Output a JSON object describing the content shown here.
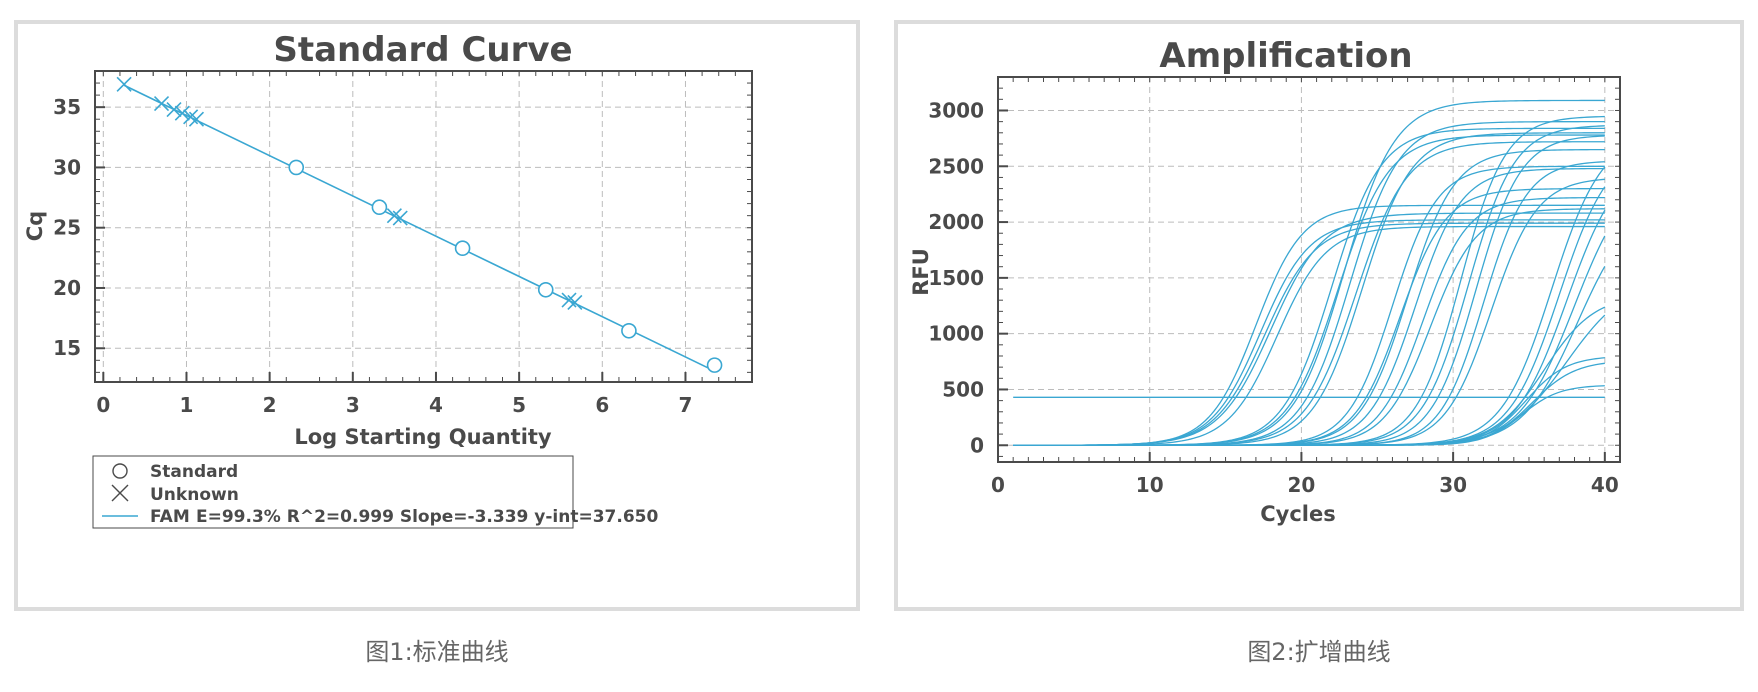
{
  "captions": {
    "left": "图1:标准曲线",
    "right": "图2:扩增曲线"
  },
  "colors": {
    "series": "#3aa7d2",
    "frame": "#4a4a4a",
    "grid": "#bcbcbc",
    "panel_border": "#dcdcdc"
  },
  "chart_data": [
    {
      "type": "scatter",
      "title": "Standard Curve",
      "xlabel": "Log Starting Quantity",
      "ylabel": "Cq",
      "xlim": [
        -0.1,
        7.8
      ],
      "ylim": [
        12.2,
        38.0
      ],
      "xticks": [
        0,
        1,
        2,
        3,
        4,
        5,
        6,
        7
      ],
      "yticks": [
        15,
        20,
        25,
        30,
        35
      ],
      "grid": true,
      "legend_position": "bottom",
      "legend": {
        "standard_label": "Standard",
        "unknown_label": "Unknown",
        "fit_name": "FAM",
        "fit_stats": "E=99.3% R^2=0.999  Slope=-3.339  y-int=37.650"
      },
      "fit": {
        "slope": -3.339,
        "intercept": 37.65,
        "x_range": [
          0.25,
          7.35
        ]
      },
      "standards": [
        {
          "x": 2.32,
          "y": 30.0
        },
        {
          "x": 3.32,
          "y": 26.7
        },
        {
          "x": 4.32,
          "y": 23.3
        },
        {
          "x": 5.32,
          "y": 19.85
        },
        {
          "x": 6.32,
          "y": 16.45
        },
        {
          "x": 7.35,
          "y": 13.6
        }
      ],
      "unknowns": [
        {
          "x": 0.25,
          "y": 36.9
        },
        {
          "x": 0.7,
          "y": 35.3
        },
        {
          "x": 0.85,
          "y": 34.8
        },
        {
          "x": 0.95,
          "y": 34.5
        },
        {
          "x": 1.05,
          "y": 34.2
        },
        {
          "x": 1.12,
          "y": 34.0
        },
        {
          "x": 3.5,
          "y": 26.0
        },
        {
          "x": 3.57,
          "y": 25.8
        },
        {
          "x": 5.6,
          "y": 19.0
        },
        {
          "x": 5.67,
          "y": 18.8
        }
      ]
    },
    {
      "type": "line",
      "title": "Amplification",
      "xlabel": "Cycles",
      "ylabel": "RFU",
      "xlim": [
        0,
        41
      ],
      "ylim": [
        -150,
        3300
      ],
      "xticks": [
        0,
        10,
        20,
        30,
        40
      ],
      "yticks": [
        0,
        500,
        1000,
        1500,
        2000,
        2500,
        3000
      ],
      "grid": true,
      "threshold": 430,
      "x_range": [
        1,
        40
      ],
      "curve_model": "sigmoid",
      "curves": [
        {
          "plateau": 2150,
          "midpoint": 17.0,
          "steepness": 0.65
        },
        {
          "plateau": 2020,
          "midpoint": 17.3,
          "steepness": 0.62
        },
        {
          "plateau": 1990,
          "midpoint": 17.6,
          "steepness": 0.6
        },
        {
          "plateau": 2080,
          "midpoint": 18.0,
          "steepness": 0.58
        },
        {
          "plateau": 1960,
          "midpoint": 18.4,
          "steepness": 0.62
        },
        {
          "plateau": 2840,
          "midpoint": 22.0,
          "steepness": 0.62
        },
        {
          "plateau": 2780,
          "midpoint": 22.4,
          "steepness": 0.6
        },
        {
          "plateau": 3090,
          "midpoint": 22.8,
          "steepness": 0.6
        },
        {
          "plateau": 2900,
          "midpoint": 23.2,
          "steepness": 0.62
        },
        {
          "plateau": 2720,
          "midpoint": 23.6,
          "steepness": 0.6
        },
        {
          "plateau": 2800,
          "midpoint": 24.0,
          "steepness": 0.62
        },
        {
          "plateau": 2500,
          "midpoint": 26.0,
          "steepness": 0.68
        },
        {
          "plateau": 2300,
          "midpoint": 26.5,
          "steepness": 0.66
        },
        {
          "plateau": 2650,
          "midpoint": 27.0,
          "steepness": 0.65
        },
        {
          "plateau": 2480,
          "midpoint": 27.5,
          "steepness": 0.66
        },
        {
          "plateau": 2220,
          "midpoint": 28.0,
          "steepness": 0.68
        },
        {
          "plateau": 2120,
          "midpoint": 28.5,
          "steepness": 0.66
        },
        {
          "plateau": 2950,
          "midpoint": 30.5,
          "steepness": 0.68
        },
        {
          "plateau": 2870,
          "midpoint": 31.0,
          "steepness": 0.66
        },
        {
          "plateau": 2780,
          "midpoint": 31.5,
          "steepness": 0.68
        },
        {
          "plateau": 2550,
          "midpoint": 32.0,
          "steepness": 0.7
        },
        {
          "plateau": 2400,
          "midpoint": 32.5,
          "steepness": 0.66
        },
        {
          "plateau": 2800,
          "midpoint": 36.5,
          "steepness": 0.6
        },
        {
          "plateau": 2700,
          "midpoint": 37.0,
          "steepness": 0.6
        },
        {
          "plateau": 2600,
          "midpoint": 37.5,
          "steepness": 0.58
        },
        {
          "plateau": 2500,
          "midpoint": 38.0,
          "steepness": 0.55
        },
        {
          "plateau": 2200,
          "midpoint": 38.2,
          "steepness": 0.55
        },
        {
          "plateau": 1500,
          "midpoint": 37.5,
          "steepness": 0.5
        },
        {
          "plateau": 1350,
          "midpoint": 36.0,
          "steepness": 0.6
        },
        {
          "plateau": 800,
          "midpoint": 34.8,
          "steepness": 0.75
        },
        {
          "plateau": 760,
          "midpoint": 35.2,
          "steepness": 0.7
        },
        {
          "plateau": 540,
          "midpoint": 34.5,
          "steepness": 0.8
        }
      ]
    }
  ]
}
